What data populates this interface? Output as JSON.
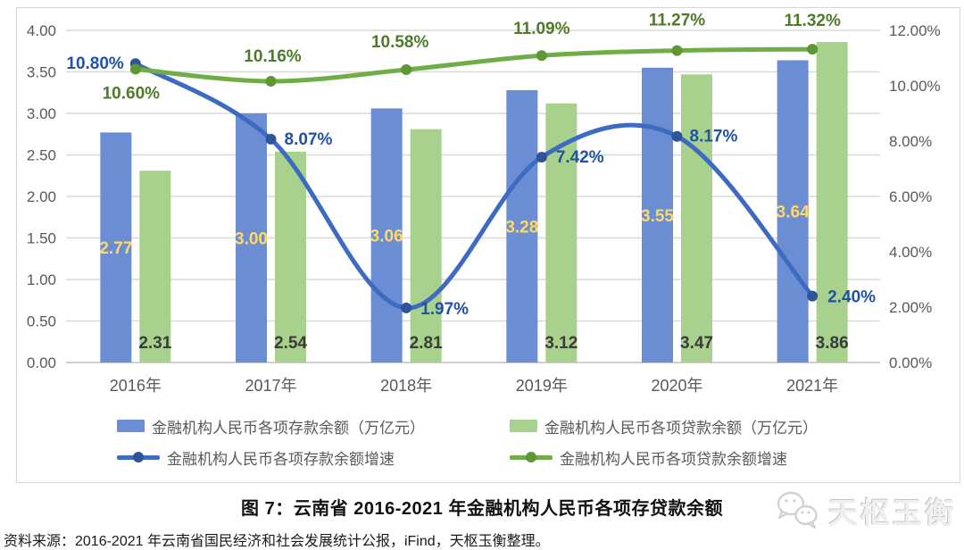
{
  "chart_data": {
    "type": "combo-bar-line",
    "categories": [
      "2016年",
      "2017年",
      "2018年",
      "2019年",
      "2020年",
      "2021年"
    ],
    "series": [
      {
        "name": "金融机构人民币各项存款余额（万亿元）",
        "type": "bar",
        "axis": "left",
        "color": "#6a8dd4",
        "label_color": "#ffd966",
        "label_position": "inside-center",
        "values": [
          2.77,
          3.0,
          3.06,
          3.28,
          3.55,
          3.64
        ],
        "labels": [
          "2.77",
          "3.00",
          "3.06",
          "3.28",
          "3.55",
          "3.64"
        ]
      },
      {
        "name": "金融机构人民币各项贷款余额（万亿元）",
        "type": "bar",
        "axis": "left",
        "color": "#a9d18e",
        "label_color": "#3b3b3b",
        "label_position": "inside-base",
        "values": [
          2.31,
          2.54,
          2.81,
          3.12,
          3.47,
          3.86
        ],
        "labels": [
          "2.31",
          "2.54",
          "2.81",
          "3.12",
          "3.47",
          "3.86"
        ]
      },
      {
        "name": "金融机构人民币各项存款余额增速",
        "type": "line",
        "axis": "right",
        "color": "#3e6bc2",
        "marker_color": "#2e5597",
        "label_color": "#2152a3",
        "values": [
          10.8,
          8.07,
          1.97,
          7.42,
          8.17,
          2.4
        ],
        "labels": [
          "10.80%",
          "8.07%",
          "1.97%",
          "7.42%",
          "8.17%",
          "2.40%"
        ],
        "label_offsets": [
          [
            -13,
            6,
            "end"
          ],
          [
            15,
            6,
            "start"
          ],
          [
            16,
            7,
            "start"
          ],
          [
            16,
            6,
            "start"
          ],
          [
            14,
            6,
            "start"
          ],
          [
            17,
            7,
            "start"
          ]
        ]
      },
      {
        "name": "金融机构人民币各项贷款余额增速",
        "type": "line",
        "axis": "right",
        "color": "#6fad47",
        "marker_color": "#5f9636",
        "label_color": "#4e7b2a",
        "values": [
          10.6,
          10.16,
          10.58,
          11.09,
          11.27,
          11.32
        ],
        "labels": [
          "10.60%",
          "10.16%",
          "10.58%",
          "11.09%",
          "11.27%",
          "11.32%"
        ],
        "label_offsets": [
          [
            -5,
            33,
            "middle"
          ],
          [
            2,
            -22,
            "middle"
          ],
          [
            -7,
            -25,
            "middle"
          ],
          [
            0,
            -24,
            "middle"
          ],
          [
            0,
            -28,
            "middle"
          ],
          [
            0,
            -26,
            "middle"
          ]
        ]
      }
    ],
    "left_axis": {
      "min": 0,
      "max": 4,
      "step": 0.5,
      "ticks": [
        "0.00",
        "0.50",
        "1.00",
        "1.50",
        "2.00",
        "2.50",
        "3.00",
        "3.50",
        "4.00"
      ]
    },
    "right_axis": {
      "min": 0,
      "max": 12,
      "step": 2,
      "ticks": [
        "0.00%",
        "2.00%",
        "4.00%",
        "6.00%",
        "8.00%",
        "10.00%",
        "12.00%"
      ]
    },
    "grid": true,
    "legend_position": "bottom",
    "colors": {
      "grid": "#d9d9d9",
      "zero_line": "#bfbfbf",
      "axis_text": "#595959"
    }
  },
  "title": "图 7：云南省 2016-2021 年金融机构人民币各项存贷款余额",
  "source": "资料来源：2016-2021 年云南省国民经济和社会发展统计公报，iFind，天枢玉衡整理。",
  "watermark": {
    "text": "天枢玉衡"
  }
}
